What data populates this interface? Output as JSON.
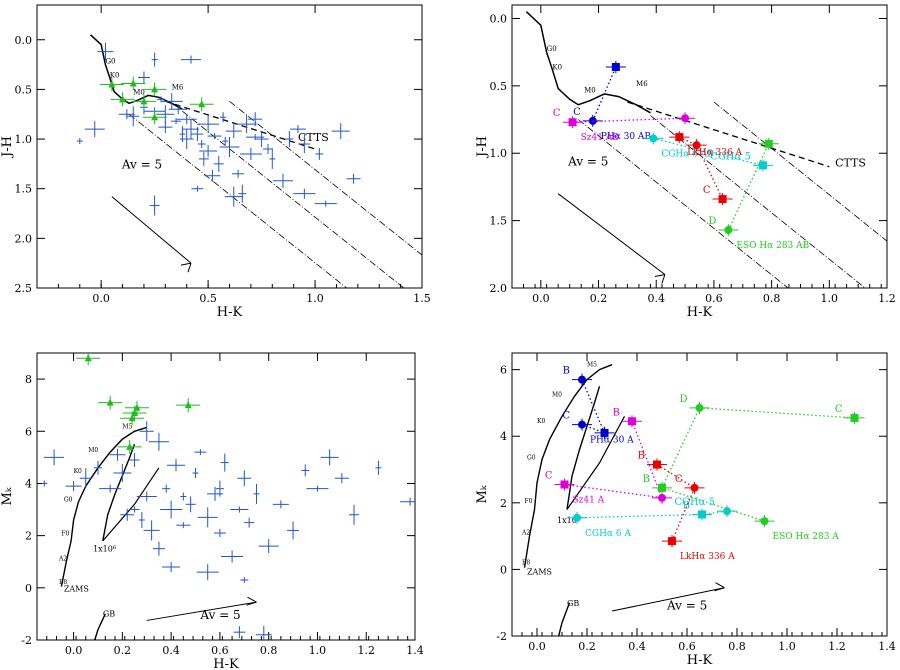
{
  "chart_data": [
    {
      "type": "scatter",
      "xlabel": "H-K",
      "ylabel": "J-H",
      "xlim": [
        -0.3,
        1.5
      ],
      "ylim": [
        -0.35,
        2.5
      ],
      "xticks": [
        "0.0",
        "0.5",
        "1.0",
        "1.5"
      ],
      "yticks": [
        "0.0",
        "0.5",
        "1.0",
        "1.5",
        "2.0",
        "2.5"
      ],
      "annotations": [
        "Av = 5",
        "CTTS",
        "M0",
        "M6",
        "K0",
        "G0"
      ],
      "series": [
        {
          "color": "#2255cc",
          "marker": "cross",
          "points": [
            [
              -0.1,
              1.02
            ],
            [
              -0.03,
              0.9
            ],
            [
              0.12,
              0.75
            ],
            [
              0.15,
              0.77
            ],
            [
              0.2,
              0.68
            ],
            [
              0.25,
              0.72
            ],
            [
              0.3,
              0.75
            ],
            [
              0.3,
              0.88
            ],
            [
              0.35,
              0.82
            ],
            [
              0.38,
              0.95
            ],
            [
              0.4,
              0.8
            ],
            [
              0.42,
              0.9
            ],
            [
              0.45,
              0.95
            ],
            [
              0.47,
              1.05
            ],
            [
              0.5,
              0.85
            ],
            [
              0.5,
              1.12
            ],
            [
              0.53,
              0.97
            ],
            [
              0.55,
              1.25
            ],
            [
              0.57,
              0.78
            ],
            [
              0.6,
              1.08
            ],
            [
              0.62,
              0.92
            ],
            [
              0.64,
              1.35
            ],
            [
              0.66,
              1.55
            ],
            [
              0.7,
              1.15
            ],
            [
              0.72,
              0.98
            ],
            [
              0.75,
              1.0
            ],
            [
              0.78,
              1.1
            ],
            [
              0.8,
              1.2
            ],
            [
              0.85,
              1.42
            ],
            [
              0.92,
              0.9
            ],
            [
              0.95,
              1.05
            ],
            [
              1.02,
              1.15
            ],
            [
              1.05,
              1.65
            ],
            [
              1.12,
              0.92
            ],
            [
              1.18,
              1.4
            ],
            [
              0.25,
              1.67
            ],
            [
              0.25,
              0.2
            ],
            [
              0.42,
              0.2
            ],
            [
              0.02,
              0.12
            ],
            [
              0.2,
              0.38
            ],
            [
              0.28,
              0.6
            ],
            [
              0.33,
              0.62
            ],
            [
              0.36,
              0.7
            ],
            [
              0.4,
              1.0
            ],
            [
              0.48,
              1.2
            ],
            [
              0.58,
              1.02
            ],
            [
              0.68,
              0.85
            ],
            [
              0.52,
              1.37
            ],
            [
              0.45,
              1.5
            ],
            [
              0.88,
              1.0
            ],
            [
              0.95,
              1.55
            ],
            [
              0.62,
              1.58
            ],
            [
              0.72,
              0.8
            ]
          ]
        },
        {
          "color": "#22bb22",
          "marker": "triangle",
          "points": [
            [
              0.05,
              0.45
            ],
            [
              0.1,
              0.6
            ],
            [
              0.15,
              0.44
            ],
            [
              0.2,
              0.62
            ],
            [
              0.25,
              0.78
            ],
            [
              0.25,
              0.5
            ],
            [
              0.47,
              0.65
            ]
          ]
        }
      ]
    },
    {
      "type": "scatter",
      "xlabel": "H-K",
      "ylabel": "J-H",
      "xlim": [
        -0.1,
        1.2
      ],
      "ylim": [
        -0.1,
        2.0
      ],
      "xticks": [
        "0.0",
        "0.2",
        "0.4",
        "0.6",
        "0.8",
        "1.0",
        "1.2"
      ],
      "yticks": [
        "0.0",
        "0.5",
        "1.0",
        "1.5",
        "2.0"
      ],
      "annotations": [
        "Av = 5",
        "CTTS",
        "M0",
        "M6",
        "K0",
        "G0"
      ],
      "series": [
        {
          "name": "PHα 30 AB",
          "color": "#0000cc",
          "points": [
            [
              0.18,
              0.76
            ],
            [
              0.26,
              0.36
            ]
          ],
          "labels": [
            "C",
            ""
          ]
        },
        {
          "name": "Sz41 AB",
          "color": "#dd00dd",
          "points": [
            [
              0.11,
              0.77
            ],
            [
              0.5,
              0.74
            ]
          ],
          "labels": [
            "C",
            ""
          ]
        },
        {
          "name": "CGHα 6 AB",
          "color": "#00cccc",
          "points": [
            [
              0.39,
              0.89
            ],
            [
              0.77,
              1.09
            ]
          ],
          "labels": [
            "",
            "CGHα 5"
          ]
        },
        {
          "name": "LkHα 336 A",
          "color": "#ee0000",
          "points": [
            [
              0.48,
              0.88
            ],
            [
              0.54,
              0.94
            ],
            [
              0.63,
              1.34
            ]
          ],
          "labels": [
            "",
            "",
            "C"
          ]
        },
        {
          "name": "ESO Hα 283 AB",
          "color": "#22cc22",
          "points": [
            [
              0.65,
              1.57
            ],
            [
              0.79,
              0.93
            ]
          ],
          "labels": [
            "D",
            ""
          ]
        }
      ]
    },
    {
      "type": "scatter",
      "xlabel": "H-K",
      "ylabel": "Mₖ",
      "xlim": [
        -0.15,
        1.4
      ],
      "ylim": [
        9,
        -2
      ],
      "xticks": [
        "0.0",
        "0.2",
        "0.4",
        "0.6",
        "0.8",
        "1.0",
        "1.2",
        "1.4"
      ],
      "yticks": [
        "-2",
        "0",
        "2",
        "4",
        "6",
        "8"
      ],
      "annotations": [
        "Av = 5",
        "GB",
        "ZAMS",
        "1x10⁶",
        "B8",
        "A2",
        "F0",
        "G0",
        "K0",
        "M0",
        "M5"
      ],
      "series": [
        {
          "color": "#2255cc",
          "marker": "cross",
          "points": [
            [
              -0.12,
              4.0
            ],
            [
              -0.08,
              5.0
            ],
            [
              0.0,
              3.9
            ],
            [
              0.05,
              4.2
            ],
            [
              0.1,
              4.6
            ],
            [
              0.15,
              3.8
            ],
            [
              0.2,
              4.4
            ],
            [
              0.22,
              2.8
            ],
            [
              0.25,
              3.0
            ],
            [
              0.28,
              2.6
            ],
            [
              0.3,
              3.5
            ],
            [
              0.32,
              2.2
            ],
            [
              0.35,
              1.5
            ],
            [
              0.38,
              3.8
            ],
            [
              0.4,
              3.0
            ],
            [
              0.42,
              4.7
            ],
            [
              0.45,
              2.4
            ],
            [
              0.48,
              3.2
            ],
            [
              0.5,
              4.4
            ],
            [
              0.55,
              2.7
            ],
            [
              0.58,
              3.6
            ],
            [
              0.6,
              2.1
            ],
            [
              0.62,
              4.8
            ],
            [
              0.65,
              1.2
            ],
            [
              0.68,
              3.0
            ],
            [
              0.7,
              4.2
            ],
            [
              0.72,
              2.5
            ],
            [
              0.75,
              3.6
            ],
            [
              0.8,
              1.6
            ],
            [
              0.85,
              3.2
            ],
            [
              0.9,
              2.2
            ],
            [
              0.95,
              4.5
            ],
            [
              1.0,
              3.8
            ],
            [
              1.05,
              5.0
            ],
            [
              1.1,
              4.2
            ],
            [
              1.15,
              2.8
            ],
            [
              1.25,
              4.6
            ],
            [
              1.38,
              3.3
            ],
            [
              0.78,
              -1.8
            ],
            [
              0.68,
              -1.7
            ],
            [
              0.7,
              0.3
            ],
            [
              0.55,
              0.6
            ],
            [
              0.4,
              0.8
            ],
            [
              0.3,
              6.0
            ],
            [
              0.25,
              4.9
            ],
            [
              0.45,
              3.5
            ],
            [
              0.35,
              5.6
            ],
            [
              0.18,
              5.1
            ],
            [
              0.52,
              5.2
            ],
            [
              0.6,
              3.8
            ]
          ]
        },
        {
          "color": "#22bb22",
          "marker": "triangle",
          "points": [
            [
              0.06,
              8.8
            ],
            [
              0.15,
              7.1
            ],
            [
              0.23,
              5.4
            ],
            [
              0.24,
              6.5
            ],
            [
              0.25,
              6.7
            ],
            [
              0.26,
              6.9
            ],
            [
              0.47,
              7.0
            ]
          ]
        }
      ]
    },
    {
      "type": "scatter",
      "xlabel": "H-K",
      "ylabel": "Mₖ",
      "xlim": [
        -0.1,
        1.4
      ],
      "ylim": [
        6.5,
        -2
      ],
      "xticks": [
        "0.0",
        "0.2",
        "0.4",
        "0.6",
        "0.8",
        "1.0",
        "1.2",
        "1.4"
      ],
      "yticks": [
        "-2",
        "0",
        "2",
        "4",
        "6"
      ],
      "annotations": [
        "Av = 5",
        "GB",
        "ZAMS",
        "1x10⁶",
        "B8",
        "A2",
        "F0",
        "G0",
        "K0",
        "M0",
        "M5"
      ],
      "series": [
        {
          "name": "PHα 30 A",
          "color": "#0000cc",
          "points": [
            [
              0.18,
              4.35
            ],
            [
              0.27,
              4.1
            ],
            [
              0.18,
              5.7
            ]
          ],
          "labels": [
            "C",
            "",
            "B"
          ]
        },
        {
          "name": "Sz41 A",
          "color": "#dd00dd",
          "points": [
            [
              0.11,
              2.55
            ],
            [
              0.5,
              2.15
            ],
            [
              0.38,
              4.45
            ]
          ],
          "labels": [
            "C",
            "",
            "B"
          ]
        },
        {
          "name": "CGHα 6 A",
          "color": "#00cccc",
          "points": [
            [
              0.16,
              1.55
            ],
            [
              0.66,
              1.65
            ],
            [
              0.76,
              1.75
            ]
          ],
          "labels": [
            "",
            "B",
            "CGHα 5"
          ]
        },
        {
          "name": "LkHα 336 A",
          "color": "#ee0000",
          "points": [
            [
              0.54,
              0.85
            ],
            [
              0.63,
              2.45
            ],
            [
              0.48,
              3.15
            ]
          ],
          "labels": [
            "",
            "C",
            "B"
          ]
        },
        {
          "name": "ESO Hα 283 A",
          "color": "#22cc22",
          "points": [
            [
              0.91,
              1.45
            ],
            [
              0.5,
              2.45
            ],
            [
              0.65,
              4.85
            ],
            [
              1.27,
              4.55
            ]
          ],
          "labels": [
            "",
            "B",
            "D",
            "C"
          ]
        }
      ]
    }
  ]
}
